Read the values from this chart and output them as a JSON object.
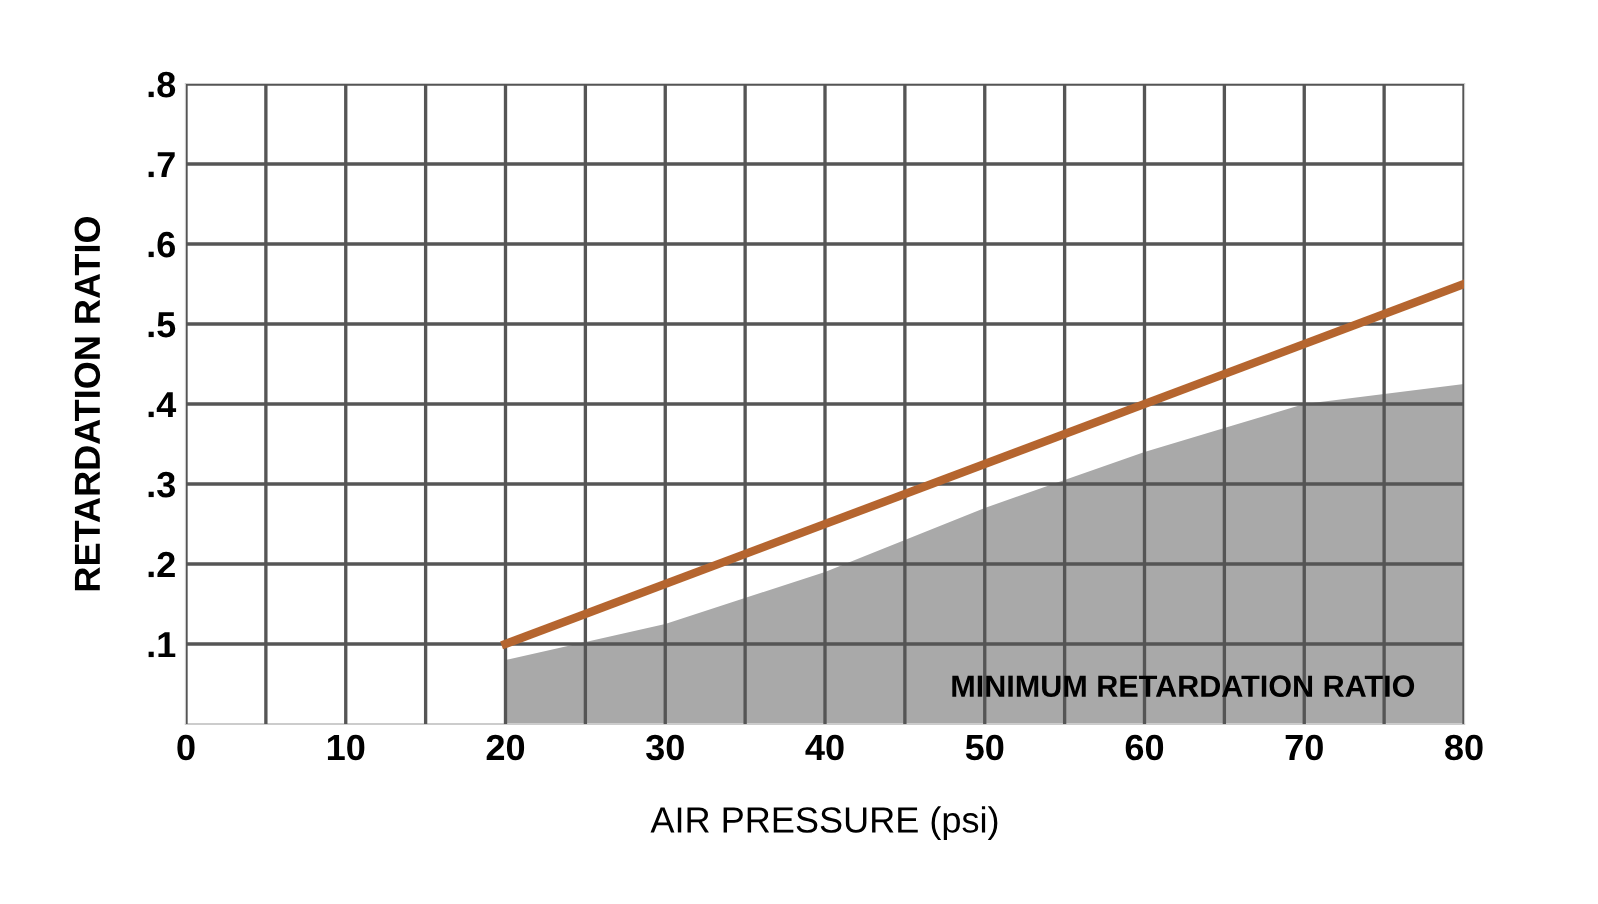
{
  "chart_data": {
    "type": "line",
    "xlabel": "AIR PRESSURE (psi)",
    "ylabel": "RETARDATION RATIO",
    "series": [
      {
        "type": "area",
        "color": "#a9a9a9",
        "x": [
          20,
          30,
          40,
          50,
          60,
          65,
          70,
          80
        ],
        "values": [
          0.08,
          0.125,
          0.19,
          0.27,
          0.34,
          0.37,
          0.4,
          0.425
        ]
      },
      {
        "color": "#b5652f",
        "x": [
          20,
          80
        ],
        "values": [
          0.1,
          0.55
        ]
      }
    ],
    "xlim": [
      0,
      80
    ],
    "ylim": [
      0,
      0.8
    ],
    "xticks": [
      0,
      {
        "value": 5,
        "label": null
      },
      10,
      {
        "value": 15,
        "label": null
      },
      20,
      {
        "value": 25,
        "label": null
      },
      30,
      {
        "value": 35,
        "label": null
      },
      40,
      {
        "value": 45,
        "label": null
      },
      50,
      {
        "value": 55,
        "label": null
      },
      60,
      {
        "value": 65,
        "label": null
      },
      70,
      {
        "value": 75,
        "label": null
      },
      80
    ],
    "yticks": [
      {
        "value": 0.1,
        "label": ".1"
      },
      {
        "value": 0.2,
        "label": ".2"
      },
      {
        "value": 0.3,
        "label": ".3"
      },
      {
        "value": 0.4,
        "label": ".4"
      },
      {
        "value": 0.5,
        "label": ".5"
      },
      {
        "value": 0.6,
        "label": ".6"
      },
      {
        "value": 0.7,
        "label": ".7"
      },
      {
        "value": 0.8,
        "label": ".8"
      }
    ],
    "grid": true,
    "annotations": [
      "MINIMUM RETARDATION RATIO"
    ]
  }
}
